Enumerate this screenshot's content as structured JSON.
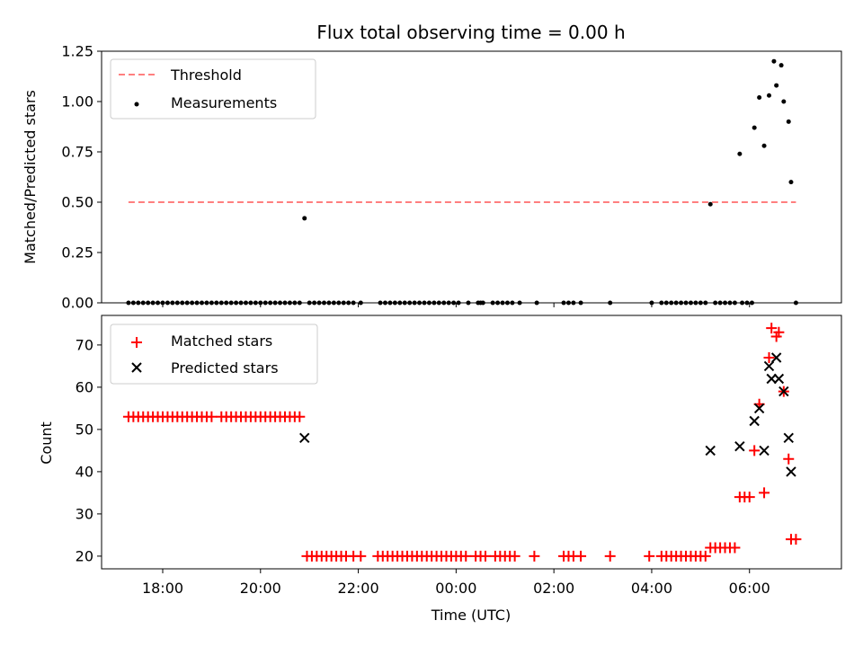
{
  "chart_data": [
    {
      "type": "scatter",
      "title": "Flux total observing time = 0.00 h",
      "xlabel": "",
      "ylabel": "Matched/Predicted stars",
      "ylim": [
        0,
        1.25
      ],
      "yticks": [
        0.0,
        0.25,
        0.5,
        0.75,
        1.0,
        1.25
      ],
      "ytick_labels": [
        "0.00",
        "0.25",
        "0.50",
        "0.75",
        "1.00",
        "1.25"
      ],
      "xlim_hours": [
        16.75,
        31.88
      ],
      "xticks_hours": [
        18,
        20,
        22,
        24,
        26,
        28,
        30
      ],
      "xtick_labels": [
        "18:00",
        "20:00",
        "22:00",
        "00:00",
        "02:00",
        "04:00",
        "06:00"
      ],
      "legend_position": "top-left",
      "threshold": {
        "name": "Threshold",
        "value": 0.5,
        "x_range": [
          17.3,
          30.95
        ],
        "color": "#ff7f7f"
      },
      "series": [
        {
          "name": "Measurements",
          "color": "#000000",
          "x": [
            20.9,
            29.2,
            29.8,
            30.1,
            30.2,
            30.3,
            30.4,
            30.5,
            30.55,
            30.65,
            30.7,
            30.8,
            30.85
          ],
          "y": [
            0.42,
            0.49,
            0.74,
            0.87,
            1.02,
            0.78,
            1.03,
            1.2,
            1.08,
            1.18,
            1.0,
            0.9,
            0.6
          ]
        }
      ],
      "zero_points_x": [
        17.3,
        17.4,
        17.5,
        17.6,
        17.7,
        17.8,
        17.9,
        18.0,
        18.1,
        18.2,
        18.3,
        18.4,
        18.5,
        18.6,
        18.7,
        18.8,
        18.9,
        19.0,
        19.1,
        19.2,
        19.3,
        19.4,
        19.5,
        19.6,
        19.7,
        19.8,
        19.9,
        20.0,
        20.1,
        20.2,
        20.3,
        20.4,
        20.5,
        20.6,
        20.7,
        20.8,
        21.0,
        21.1,
        21.2,
        21.3,
        21.4,
        21.5,
        21.6,
        21.7,
        21.8,
        21.9,
        22.05,
        22.45,
        22.55,
        22.65,
        22.75,
        22.85,
        22.95,
        23.05,
        23.15,
        23.25,
        23.35,
        23.45,
        23.55,
        23.65,
        23.75,
        23.85,
        23.95,
        24.05,
        24.25,
        24.45,
        24.5,
        24.55,
        24.75,
        24.85,
        24.95,
        25.05,
        25.15,
        25.3,
        25.65,
        26.2,
        26.3,
        26.4,
        26.55,
        27.15,
        28.0,
        28.2,
        28.3,
        28.4,
        28.5,
        28.6,
        28.7,
        28.8,
        28.9,
        29.0,
        29.1,
        29.3,
        29.4,
        29.5,
        29.6,
        29.7,
        29.85,
        29.95,
        30.05,
        30.95
      ]
    },
    {
      "type": "scatter",
      "xlabel": "Time (UTC)",
      "ylabel": "Count",
      "ylim": [
        17,
        77
      ],
      "yticks": [
        20,
        30,
        40,
        50,
        60,
        70
      ],
      "ytick_labels": [
        "20",
        "30",
        "40",
        "50",
        "60",
        "70"
      ],
      "xlim_hours": [
        16.75,
        31.88
      ],
      "xticks_hours": [
        18,
        20,
        22,
        24,
        26,
        28,
        30
      ],
      "xtick_labels": [
        "18:00",
        "20:00",
        "22:00",
        "00:00",
        "02:00",
        "04:00",
        "06:00"
      ],
      "legend_position": "top-left",
      "series": [
        {
          "name": "Matched stars",
          "marker": "plus",
          "color": "#ff0000",
          "points": [
            [
              17.3,
              53
            ],
            [
              17.4,
              53
            ],
            [
              17.5,
              53
            ],
            [
              17.6,
              53
            ],
            [
              17.7,
              53
            ],
            [
              17.8,
              53
            ],
            [
              17.9,
              53
            ],
            [
              18.0,
              53
            ],
            [
              18.1,
              53
            ],
            [
              18.2,
              53
            ],
            [
              18.3,
              53
            ],
            [
              18.4,
              53
            ],
            [
              18.5,
              53
            ],
            [
              18.6,
              53
            ],
            [
              18.7,
              53
            ],
            [
              18.8,
              53
            ],
            [
              18.9,
              53
            ],
            [
              19.0,
              53
            ],
            [
              19.2,
              53
            ],
            [
              19.3,
              53
            ],
            [
              19.4,
              53
            ],
            [
              19.5,
              53
            ],
            [
              19.6,
              53
            ],
            [
              19.7,
              53
            ],
            [
              19.8,
              53
            ],
            [
              19.9,
              53
            ],
            [
              20.0,
              53
            ],
            [
              20.1,
              53
            ],
            [
              20.2,
              53
            ],
            [
              20.3,
              53
            ],
            [
              20.4,
              53
            ],
            [
              20.5,
              53
            ],
            [
              20.6,
              53
            ],
            [
              20.7,
              53
            ],
            [
              20.8,
              53
            ],
            [
              20.95,
              20
            ],
            [
              21.05,
              20
            ],
            [
              21.15,
              20
            ],
            [
              21.25,
              20
            ],
            [
              21.35,
              20
            ],
            [
              21.45,
              20
            ],
            [
              21.55,
              20
            ],
            [
              21.65,
              20
            ],
            [
              21.75,
              20
            ],
            [
              21.9,
              20
            ],
            [
              22.05,
              20
            ],
            [
              22.4,
              20
            ],
            [
              22.5,
              20
            ],
            [
              22.6,
              20
            ],
            [
              22.7,
              20
            ],
            [
              22.8,
              20
            ],
            [
              22.9,
              20
            ],
            [
              23.0,
              20
            ],
            [
              23.1,
              20
            ],
            [
              23.2,
              20
            ],
            [
              23.3,
              20
            ],
            [
              23.4,
              20
            ],
            [
              23.5,
              20
            ],
            [
              23.6,
              20
            ],
            [
              23.7,
              20
            ],
            [
              23.8,
              20
            ],
            [
              23.9,
              20
            ],
            [
              24.0,
              20
            ],
            [
              24.1,
              20
            ],
            [
              24.2,
              20
            ],
            [
              24.4,
              20
            ],
            [
              24.5,
              20
            ],
            [
              24.6,
              20
            ],
            [
              24.8,
              20
            ],
            [
              24.9,
              20
            ],
            [
              25.0,
              20
            ],
            [
              25.1,
              20
            ],
            [
              25.2,
              20
            ],
            [
              25.6,
              20
            ],
            [
              26.2,
              20
            ],
            [
              26.3,
              20
            ],
            [
              26.4,
              20
            ],
            [
              26.55,
              20
            ],
            [
              27.15,
              20
            ],
            [
              27.95,
              20
            ],
            [
              28.2,
              20
            ],
            [
              28.3,
              20
            ],
            [
              28.4,
              20
            ],
            [
              28.5,
              20
            ],
            [
              28.6,
              20
            ],
            [
              28.7,
              20
            ],
            [
              28.8,
              20
            ],
            [
              28.9,
              20
            ],
            [
              29.0,
              20
            ],
            [
              29.1,
              20
            ],
            [
              29.2,
              22
            ],
            [
              29.3,
              22
            ],
            [
              29.4,
              22
            ],
            [
              29.5,
              22
            ],
            [
              29.6,
              22
            ],
            [
              29.7,
              22
            ],
            [
              29.8,
              34
            ],
            [
              29.9,
              34
            ],
            [
              30.0,
              34
            ],
            [
              30.1,
              45
            ],
            [
              30.2,
              56
            ],
            [
              30.3,
              35
            ],
            [
              30.4,
              67
            ],
            [
              30.45,
              74
            ],
            [
              30.55,
              72
            ],
            [
              30.6,
              73
            ],
            [
              30.7,
              59
            ],
            [
              30.8,
              43
            ],
            [
              30.85,
              24
            ],
            [
              30.95,
              24
            ]
          ]
        },
        {
          "name": "Predicted stars",
          "marker": "x",
          "color": "#000000",
          "points": [
            [
              20.9,
              48
            ],
            [
              29.2,
              45
            ],
            [
              29.8,
              46
            ],
            [
              30.1,
              52
            ],
            [
              30.2,
              55
            ],
            [
              30.3,
              45
            ],
            [
              30.4,
              65
            ],
            [
              30.45,
              62
            ],
            [
              30.55,
              67
            ],
            [
              30.6,
              62
            ],
            [
              30.7,
              59
            ],
            [
              30.8,
              48
            ],
            [
              30.85,
              40
            ]
          ]
        }
      ]
    }
  ]
}
